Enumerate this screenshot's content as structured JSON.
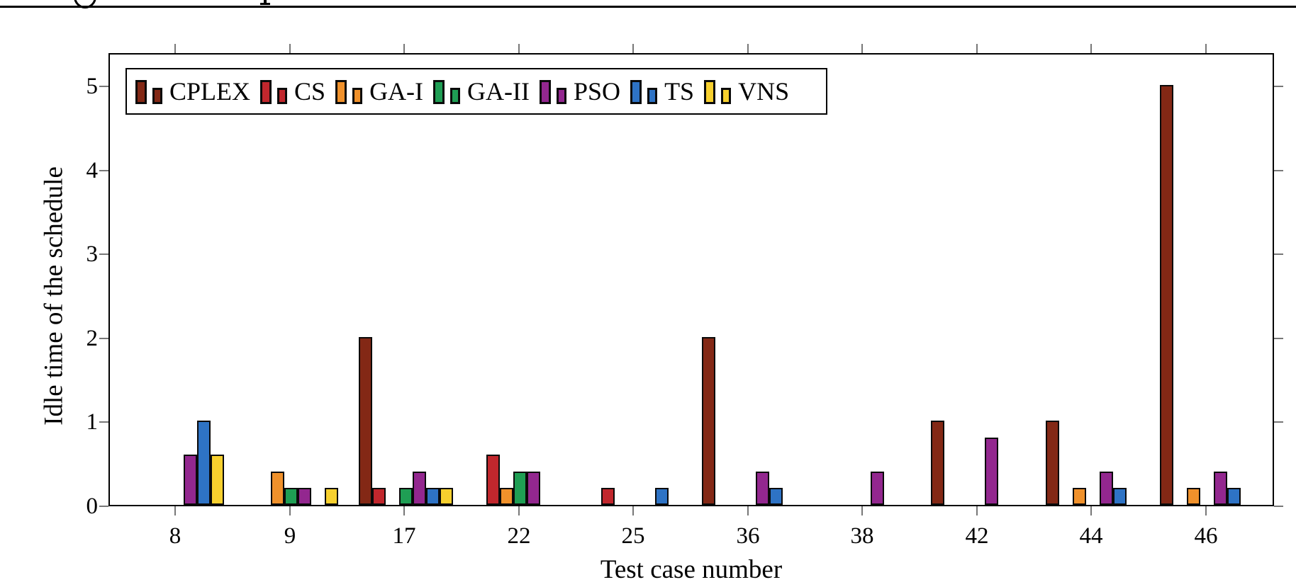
{
  "chart_data": {
    "type": "bar",
    "title": "",
    "xlabel": "Test case number",
    "ylabel": "Idle time of the schedule",
    "categories": [
      "8",
      "9",
      "17",
      "22",
      "25",
      "36",
      "38",
      "42",
      "44",
      "46"
    ],
    "series": [
      {
        "name": "CPLEX",
        "color": "#832815",
        "values": [
          0,
          0,
          2,
          0,
          0,
          2,
          0,
          1,
          1,
          5
        ]
      },
      {
        "name": "CS",
        "color": "#C1272D",
        "values": [
          0,
          0,
          0.2,
          0.6,
          0.2,
          0,
          0,
          0,
          0,
          0
        ]
      },
      {
        "name": "GA-I",
        "color": "#F0912B",
        "values": [
          0,
          0.4,
          0,
          0.2,
          0,
          0,
          0,
          0,
          0.2,
          0.2
        ]
      },
      {
        "name": "GA-II",
        "color": "#1F9E54",
        "values": [
          0,
          0.2,
          0.2,
          0.4,
          0,
          0,
          0,
          0,
          0,
          0
        ]
      },
      {
        "name": "PSO",
        "color": "#93278F",
        "values": [
          0.6,
          0.2,
          0.4,
          0.4,
          0,
          0.4,
          0.4,
          0.8,
          0.4,
          0.4
        ]
      },
      {
        "name": "TS",
        "color": "#2E73C5",
        "values": [
          1,
          0,
          0.2,
          0,
          0.2,
          0.2,
          0,
          0,
          0.2,
          0.2
        ]
      },
      {
        "name": "VNS",
        "color": "#F7D02E",
        "values": [
          0.6,
          0.2,
          0.2,
          0,
          0,
          0,
          0,
          0,
          0,
          0
        ]
      }
    ],
    "yticks": [
      "0",
      "1",
      "2",
      "3",
      "4",
      "5"
    ],
    "ylim": [
      0,
      5.4
    ],
    "grid": false,
    "frame": true,
    "legend_position": "top-left-inside"
  }
}
